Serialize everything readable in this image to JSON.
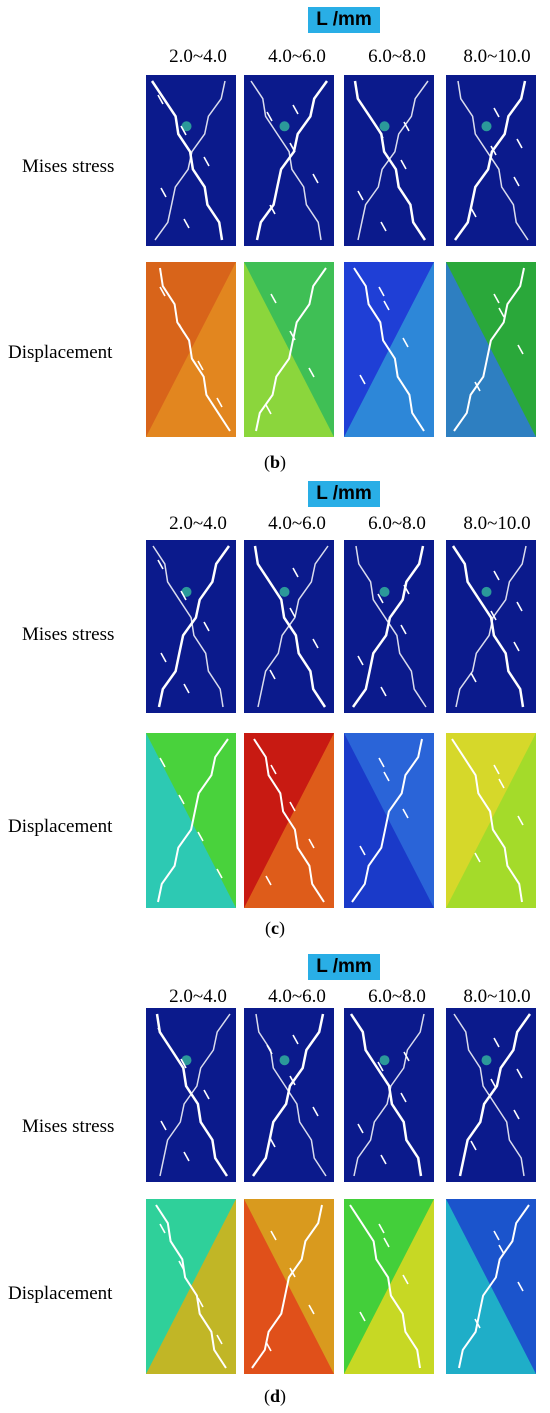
{
  "panels": [
    {
      "id": "b",
      "header": "L /mm",
      "columns": [
        "2.0~4.0",
        "4.0~6.0",
        "6.0~8.0",
        "8.0~10.0"
      ],
      "rows": [
        "Mises stress",
        "Displacement"
      ],
      "caption_open": "(",
      "caption_letter": "b",
      "caption_close": ")"
    },
    {
      "id": "c",
      "header": "L /mm",
      "columns": [
        "2.0~4.0",
        "4.0~6.0",
        "6.0~8.0",
        "8.0~10.0"
      ],
      "rows": [
        "Mises stress",
        "Displacement"
      ],
      "caption_open": "(",
      "caption_letter": "c",
      "caption_close": ")"
    },
    {
      "id": "d",
      "header": "L /mm",
      "columns": [
        "2.0~4.0",
        "4.0~6.0",
        "6.0~8.0",
        "8.0~10.0"
      ],
      "rows": [
        "Mises stress",
        "Displacement"
      ],
      "caption_open": "(",
      "caption_letter": "d",
      "caption_close": ")"
    }
  ],
  "colors": {
    "stress_base": "#0b1a8c",
    "stress_hot": "#39d0a0",
    "displacement": {
      "b": [
        "#d8641a",
        "#3fbf55",
        "#1f3fd6",
        "#2aa83a"
      ],
      "c": [
        "#49d23c",
        "#c81a12",
        "#2a64d8",
        "#d6d82a"
      ],
      "d": [
        "#2fd09a",
        "#d99a1e",
        "#43cf3a",
        "#1b54cc"
      ]
    },
    "displacement_alt": {
      "b": [
        "#e38a20",
        "#93d83a",
        "#2f8fd8",
        "#2f7ad0"
      ],
      "c": [
        "#2ac8c0",
        "#e0641c",
        "#1835c8",
        "#9fdb2a"
      ],
      "d": [
        "#d1b21a",
        "#e0481a",
        "#d6d822",
        "#20b8c8"
      ]
    },
    "badge": "#29aee6"
  }
}
